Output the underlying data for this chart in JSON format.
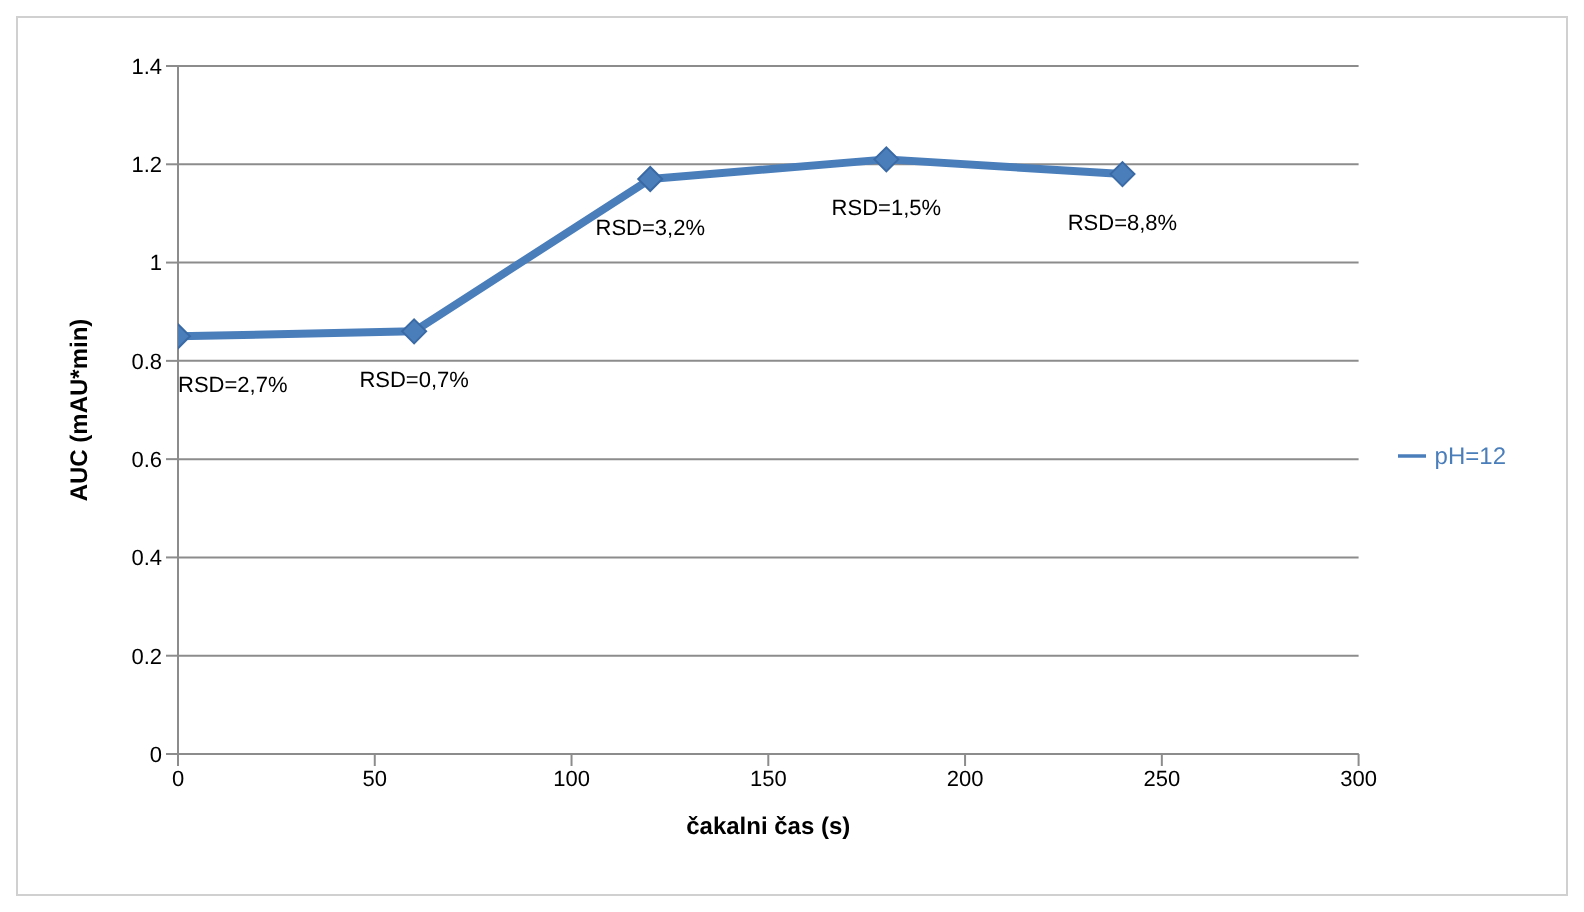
{
  "chart_data": {
    "type": "line",
    "xlabel": "čakalni čas (s)",
    "ylabel": "AUC (mAU*min)",
    "x": [
      0,
      60,
      120,
      180,
      240
    ],
    "series": [
      {
        "name": "pH=12",
        "color": "#4a7ebb",
        "values": [
          0.85,
          0.86,
          1.17,
          1.21,
          1.18
        ]
      }
    ],
    "xlim": [
      0,
      300
    ],
    "xticks": [
      0,
      50,
      100,
      150,
      200,
      250,
      300
    ],
    "ylim": [
      0,
      1.4
    ],
    "yticks": [
      0,
      0.2,
      0.4,
      0.6,
      0.8,
      1,
      1.2,
      1.4
    ],
    "grid": "y",
    "legend": "right",
    "marker": "diamond",
    "line_style": "solid",
    "annotations": [
      {
        "text": "RSD=2,7%",
        "x": 0,
        "y": 0.85
      },
      {
        "text": "RSD=0,7%",
        "x": 60,
        "y": 0.86
      },
      {
        "text": "RSD=3,2%",
        "x": 120,
        "y": 1.17
      },
      {
        "text": "RSD=1,5%",
        "x": 180,
        "y": 1.21
      },
      {
        "text": "RSD=8,8%",
        "x": 240,
        "y": 1.18
      }
    ]
  }
}
